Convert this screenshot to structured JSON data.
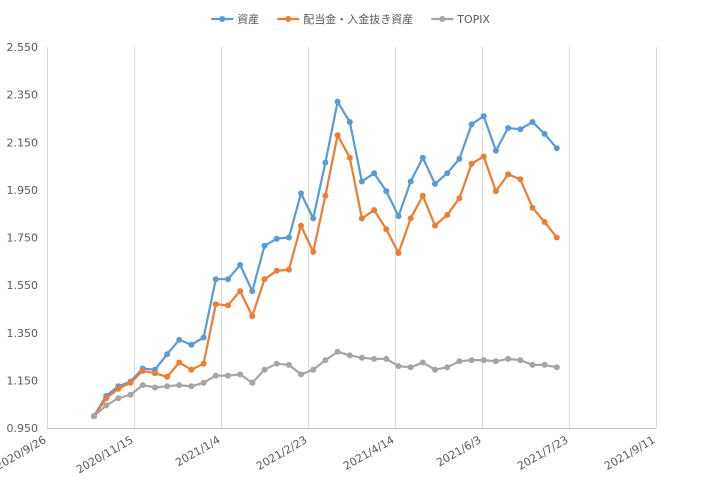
{
  "chart_data": {
    "type": "line",
    "title": "",
    "xlabel": "",
    "ylabel": "",
    "ylim": [
      0.95,
      2.55
    ],
    "yticks": [
      "2.550",
      "2.350",
      "2.150",
      "1.950",
      "1.750",
      "1.550",
      "1.350",
      "1.150",
      "0.950"
    ],
    "xtick_labels": [
      "2020/9/26",
      "2020/11/15",
      "2021/1/4",
      "2021/2/23",
      "2021/4/14",
      "2021/6/3",
      "2021/7/23",
      "2021/9/11"
    ],
    "xlim": [
      "2020-09-26",
      "2021-09-11"
    ],
    "grid": "vertical",
    "legend_position": "top",
    "x": [
      "2020-10-23",
      "2020-10-30",
      "2020-11-06",
      "2020-11-13",
      "2020-11-20",
      "2020-11-27",
      "2020-12-04",
      "2020-12-11",
      "2020-12-18",
      "2020-12-25",
      "2021-01-01",
      "2021-01-08",
      "2021-01-15",
      "2021-01-22",
      "2021-01-29",
      "2021-02-05",
      "2021-02-12",
      "2021-02-19",
      "2021-02-26",
      "2021-03-05",
      "2021-03-12",
      "2021-03-19",
      "2021-03-26",
      "2021-04-02",
      "2021-04-09",
      "2021-04-16",
      "2021-04-23",
      "2021-04-30",
      "2021-05-07",
      "2021-05-14",
      "2021-05-21",
      "2021-05-28",
      "2021-06-04",
      "2021-06-11",
      "2021-06-18",
      "2021-06-25",
      "2021-07-02",
      "2021-07-09",
      "2021-07-16",
      "2021-07-23"
    ],
    "series": [
      {
        "name": "資産",
        "color": "#5b9bd5",
        "values": [
          1.0,
          1.085,
          1.125,
          1.145,
          1.2,
          1.195,
          1.26,
          1.32,
          1.3,
          1.33,
          1.575,
          1.575,
          1.635,
          1.525,
          1.715,
          1.745,
          1.75,
          1.935,
          1.83,
          2.065,
          2.32,
          2.235,
          1.985,
          2.02,
          1.945,
          1.84,
          1.985,
          2.085,
          1.975,
          2.02,
          2.08,
          2.225,
          2.26,
          2.115,
          2.21,
          2.205,
          2.235,
          2.185,
          2.125,
          null
        ]
      },
      {
        "name": "配当金・入金抜き資産",
        "color": "#ed7d31",
        "values": [
          1.0,
          1.075,
          1.115,
          1.14,
          1.19,
          1.18,
          1.165,
          1.225,
          1.195,
          1.22,
          1.47,
          1.465,
          1.525,
          1.42,
          1.575,
          1.61,
          1.615,
          1.8,
          1.69,
          1.925,
          2.18,
          2.085,
          1.83,
          1.865,
          1.785,
          1.685,
          1.83,
          1.925,
          1.8,
          1.845,
          1.915,
          2.06,
          2.09,
          1.945,
          2.015,
          1.995,
          1.875,
          1.815,
          1.75,
          null
        ]
      },
      {
        "name": "TOPIX",
        "color": "#a5a5a5",
        "values": [
          1.0,
          1.045,
          1.075,
          1.09,
          1.13,
          1.12,
          1.125,
          1.13,
          1.125,
          1.14,
          1.17,
          1.17,
          1.175,
          1.14,
          1.195,
          1.22,
          1.215,
          1.175,
          1.195,
          1.235,
          1.27,
          1.255,
          1.245,
          1.24,
          1.24,
          1.21,
          1.205,
          1.225,
          1.195,
          1.205,
          1.23,
          1.235,
          1.235,
          1.23,
          1.24,
          1.235,
          1.215,
          1.215,
          1.205,
          null
        ]
      }
    ]
  }
}
